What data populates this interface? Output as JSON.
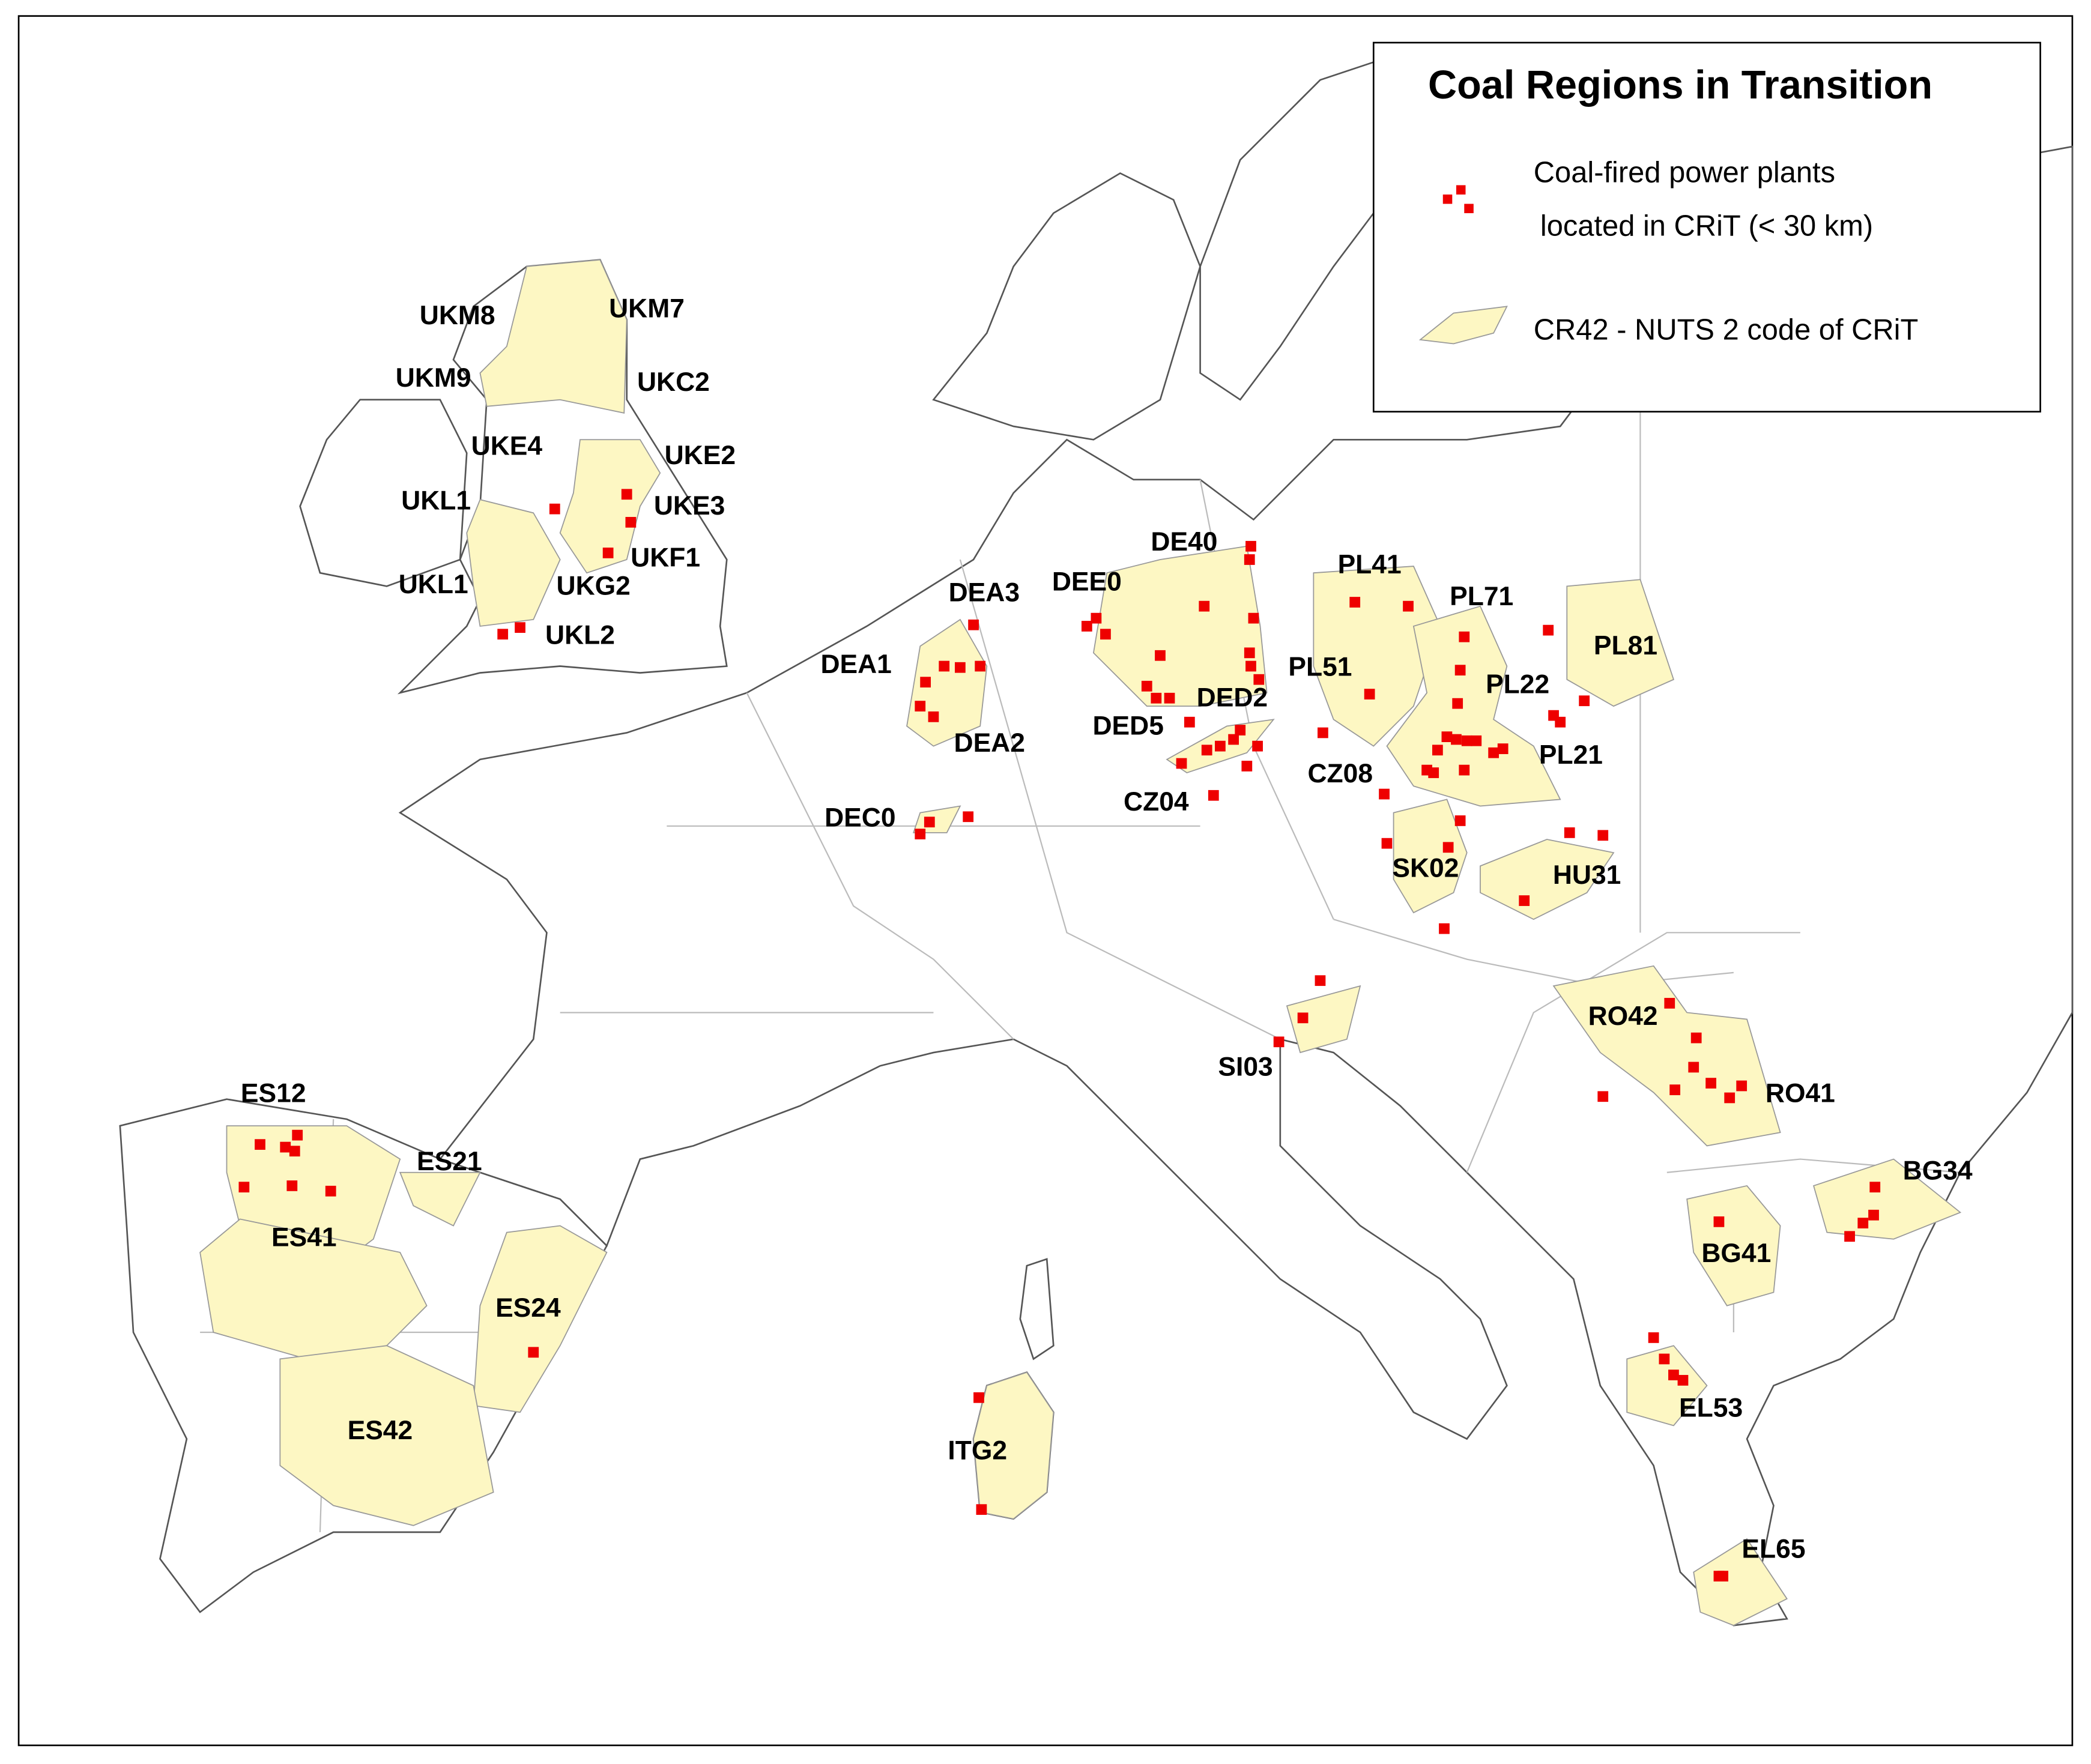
{
  "legend": {
    "title": "Coal Regions in Transition",
    "items": [
      {
        "label": "Coal-fired power plants"
      },
      {
        "label": "located in CRiT (< 30 km)"
      },
      {
        "label": "CR42 - NUTS 2 code of CRiT"
      }
    ]
  },
  "regions": [
    {
      "label": "UKM8"
    },
    {
      "label": "UKM7"
    },
    {
      "label": "UKM9"
    },
    {
      "label": "UKC2"
    },
    {
      "label": "UKE4"
    },
    {
      "label": "UKE2"
    },
    {
      "label": "UKL1"
    },
    {
      "label": "UKE3"
    },
    {
      "label": "UKF1"
    },
    {
      "label": "UKL1"
    },
    {
      "label": "UKG2"
    },
    {
      "label": "UKL2"
    },
    {
      "label": "DEA3"
    },
    {
      "label": "DEE0"
    },
    {
      "label": "DE40"
    },
    {
      "label": "PL41"
    },
    {
      "label": "PL71"
    },
    {
      "label": "PL81"
    },
    {
      "label": "DEA1"
    },
    {
      "label": "PL51"
    },
    {
      "label": "PL22"
    },
    {
      "label": "DED2"
    },
    {
      "label": "DED5"
    },
    {
      "label": "DEA2"
    },
    {
      "label": "PL21"
    },
    {
      "label": "CZ08"
    },
    {
      "label": "CZ04"
    },
    {
      "label": "DEC0"
    },
    {
      "label": "SK02"
    },
    {
      "label": "HU31"
    },
    {
      "label": "RO42"
    },
    {
      "label": "SI03"
    },
    {
      "label": "ES12"
    },
    {
      "label": "RO41"
    },
    {
      "label": "ES21"
    },
    {
      "label": "BG34"
    },
    {
      "label": "ES41"
    },
    {
      "label": "BG41"
    },
    {
      "label": "ES24"
    },
    {
      "label": "EL53"
    },
    {
      "label": "ES42"
    },
    {
      "label": "ITG2"
    },
    {
      "label": "EL65"
    }
  ]
}
